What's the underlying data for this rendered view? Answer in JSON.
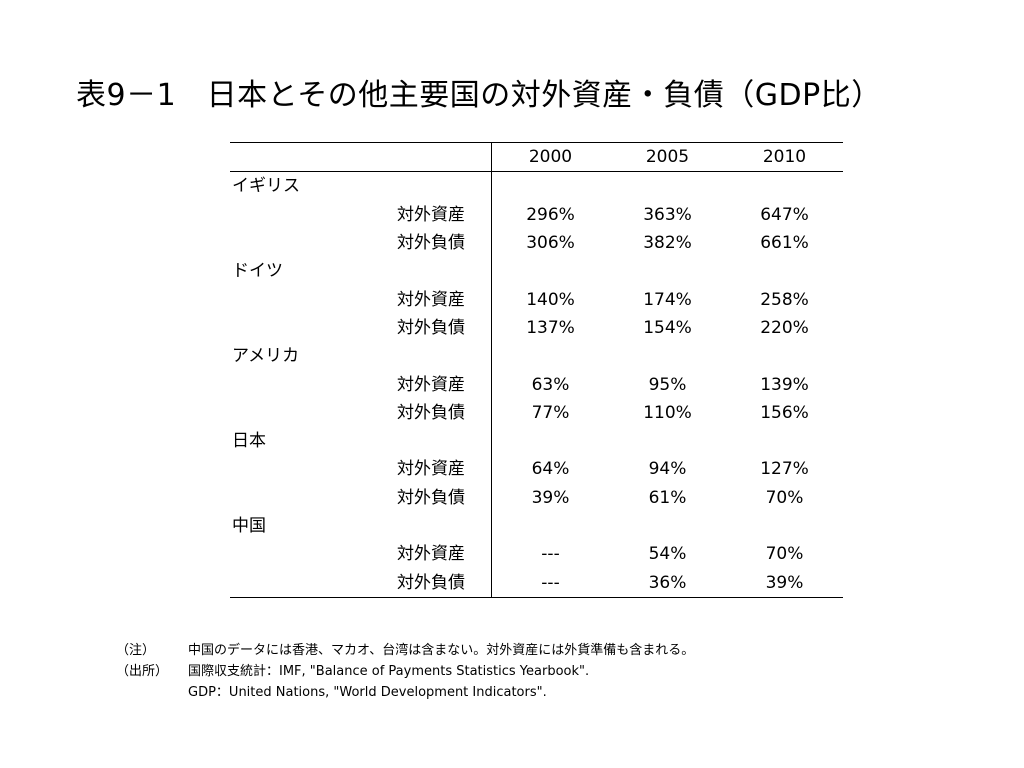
{
  "title": "表9－1　日本とその他主要国の対外資産・負債（GDP比）",
  "table": {
    "years": [
      "2000",
      "2005",
      "2010"
    ],
    "countries": [
      {
        "name": "イギリス",
        "rows": [
          {
            "label": "対外資産",
            "values": [
              "296%",
              "363%",
              "647%"
            ]
          },
          {
            "label": "対外負債",
            "values": [
              "306%",
              "382%",
              "661%"
            ]
          }
        ]
      },
      {
        "name": "ドイツ",
        "rows": [
          {
            "label": "対外資産",
            "values": [
              "140%",
              "174%",
              "258%"
            ]
          },
          {
            "label": "対外負債",
            "values": [
              "137%",
              "154%",
              "220%"
            ]
          }
        ]
      },
      {
        "name": "アメリカ",
        "rows": [
          {
            "label": "対外資産",
            "values": [
              "63%",
              "95%",
              "139%"
            ]
          },
          {
            "label": "対外負債",
            "values": [
              "77%",
              "110%",
              "156%"
            ]
          }
        ]
      },
      {
        "name": "日本",
        "rows": [
          {
            "label": "対外資産",
            "values": [
              "64%",
              "94%",
              "127%"
            ]
          },
          {
            "label": "対外負債",
            "values": [
              "39%",
              "61%",
              "70%"
            ]
          }
        ]
      },
      {
        "name": "中国",
        "rows": [
          {
            "label": "対外資産",
            "values": [
              "---",
              "54%",
              "70%"
            ]
          },
          {
            "label": "対外負債",
            "values": [
              "---",
              "36%",
              "39%"
            ]
          }
        ]
      }
    ]
  },
  "notes": {
    "note_tag": "（注）",
    "note_text": "中国のデータには香港、マカオ、台湾は含まない。対外資産には外貨準備も含まれる。",
    "source_tag": "（出所）",
    "source_bop": "国際収支統計：IMF, \"Balance of Payments Statistics Yearbook\".",
    "source_gdp": "GDP：United Nations, \"World Development Indicators\"."
  }
}
